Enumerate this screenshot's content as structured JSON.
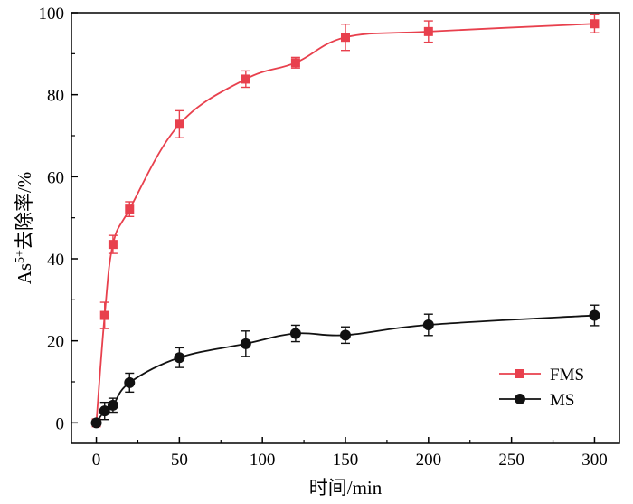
{
  "chart_data": {
    "type": "line",
    "xlabel": "时间/min",
    "ylabel": {
      "base": "As",
      "superscript": "5+",
      "rest": "去除率/%"
    },
    "xlim": [
      -15,
      315
    ],
    "ylim": [
      -5,
      100
    ],
    "xticks": [
      0,
      50,
      100,
      150,
      200,
      250,
      300
    ],
    "yticks": [
      0,
      20,
      40,
      60,
      80,
      100
    ],
    "grid": false,
    "legend_position": "bottom-right",
    "series": [
      {
        "name": "FMS",
        "color": "#e8404d",
        "marker": "square",
        "x": [
          0,
          5,
          10,
          20,
          50,
          90,
          120,
          150,
          200,
          300
        ],
        "y": [
          0,
          26.2,
          43.5,
          52.1,
          72.8,
          83.8,
          87.8,
          94.0,
          95.4,
          97.3
        ],
        "err": [
          0.6,
          3.2,
          2.2,
          1.8,
          3.3,
          2.0,
          1.3,
          3.2,
          2.6,
          2.2
        ]
      },
      {
        "name": "MS",
        "color": "#111111",
        "marker": "circle",
        "x": [
          0,
          5,
          10,
          20,
          50,
          90,
          120,
          150,
          200,
          300
        ],
        "y": [
          0,
          2.9,
          4.3,
          9.8,
          15.9,
          19.3,
          21.8,
          21.4,
          23.9,
          26.2
        ],
        "err": [
          0.4,
          2.1,
          1.7,
          2.3,
          2.4,
          3.1,
          2.0,
          2.0,
          2.6,
          2.5
        ]
      }
    ]
  }
}
